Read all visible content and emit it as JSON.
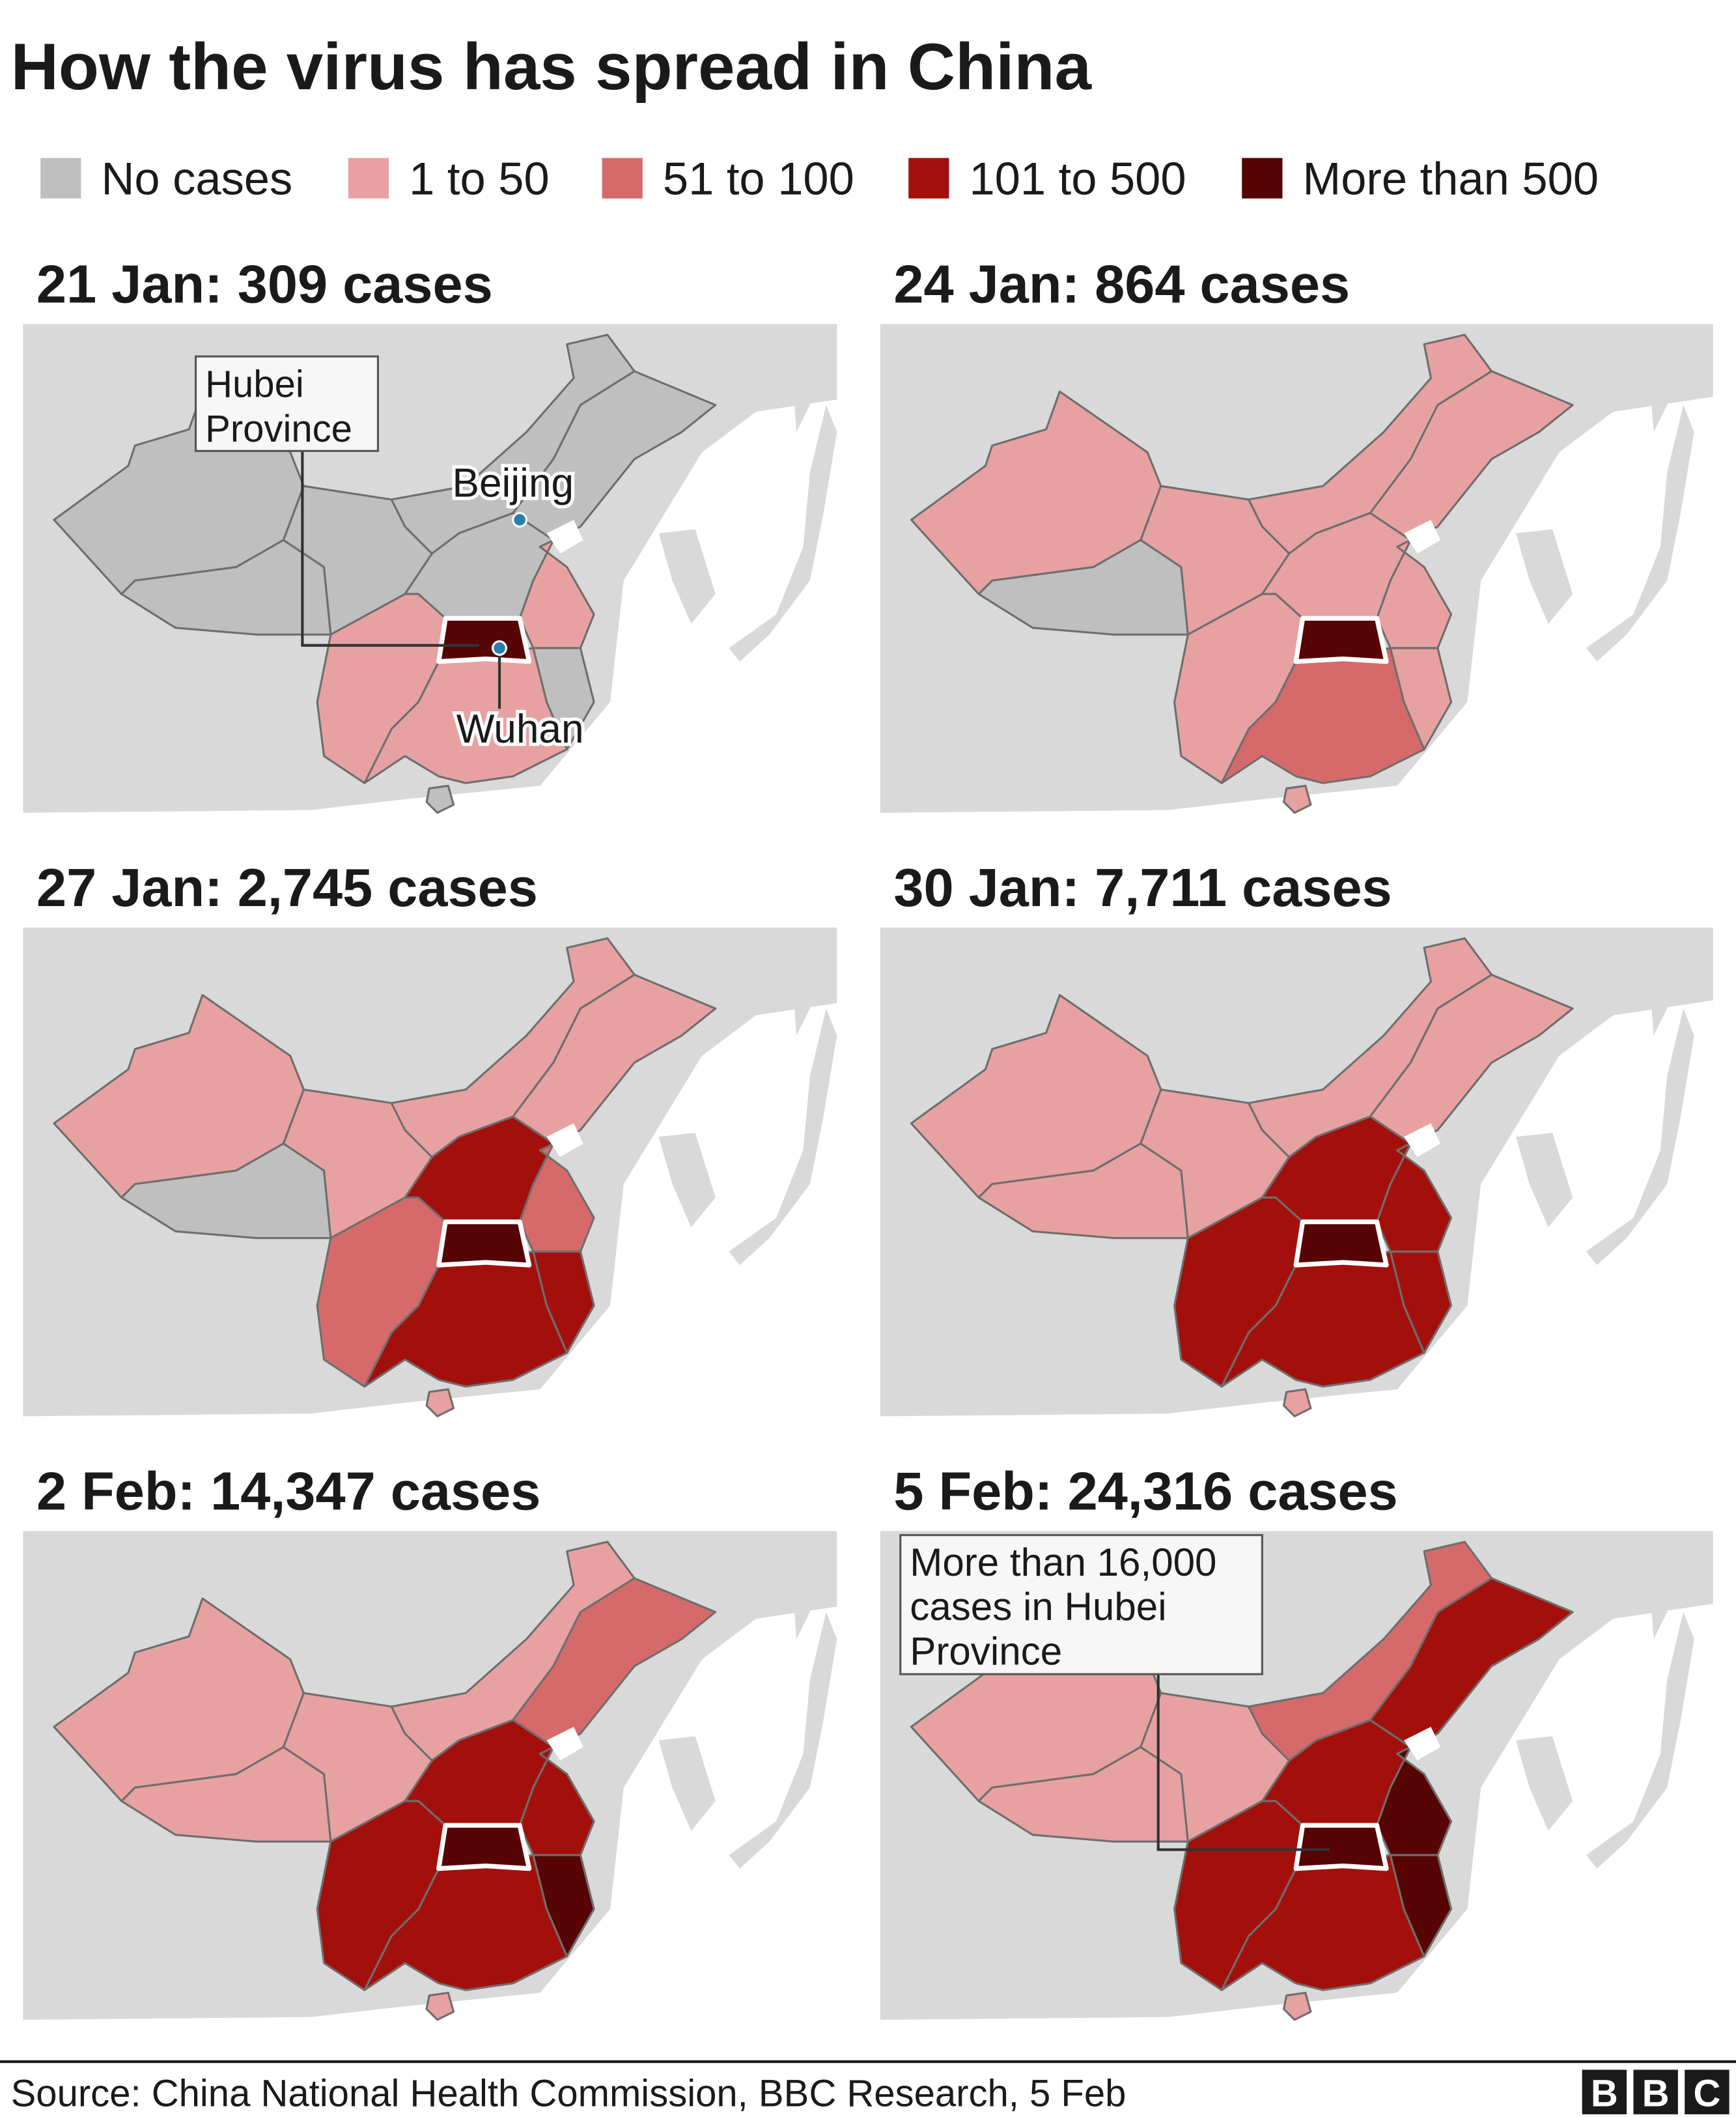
{
  "title": "How the virus has spread in China",
  "legend": [
    {
      "label": "No cases",
      "color": "#bfbfbf"
    },
    {
      "label": "1 to 50",
      "color": "#e8a1a1"
    },
    {
      "label": "51 to 100",
      "color": "#d66a6a"
    },
    {
      "label": "101 to 500",
      "color": "#a3100c"
    },
    {
      "label": "More than 500",
      "color": "#560404"
    }
  ],
  "panels": [
    {
      "title": "21 Jan: 309 cases",
      "callout": [
        "Hubei",
        "Province"
      ],
      "city_labels": [
        "Beijing",
        "Wuhan"
      ]
    },
    {
      "title": "24 Jan: 864 cases"
    },
    {
      "title": "27 Jan: 2,745 cases"
    },
    {
      "title": "30 Jan: 7,711 cases"
    },
    {
      "title": "2 Feb: 14,347 cases"
    },
    {
      "title": "5 Feb: 24,316 cases",
      "callout": [
        "More than 16,000",
        "cases in Hubei",
        "Province"
      ]
    }
  ],
  "source": "Source: China National Health Commission, BBC Research, 5 Feb",
  "logo": [
    "B",
    "B",
    "C"
  ]
}
